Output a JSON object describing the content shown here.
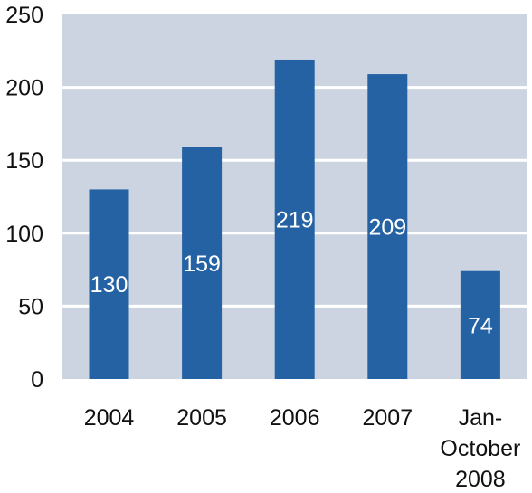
{
  "chart_data": {
    "type": "bar",
    "categories": [
      [
        "2004"
      ],
      [
        "2005"
      ],
      [
        "2006"
      ],
      [
        "2007"
      ],
      [
        "Jan-",
        "October",
        "2008"
      ]
    ],
    "values": [
      130,
      159,
      219,
      209,
      74
    ],
    "data_labels": [
      "130",
      "159",
      "219",
      "209",
      "74"
    ],
    "title": "",
    "xlabel": "",
    "ylabel": "",
    "ylim": [
      0,
      250
    ],
    "yticks": [
      "0",
      "50",
      "100",
      "150",
      "200",
      "250"
    ],
    "grid": "horizontal",
    "legend": "none",
    "colors": {
      "bar": "#2462A4",
      "plot_background": "#CCD4E1",
      "grid": "#FFFFFF"
    }
  }
}
